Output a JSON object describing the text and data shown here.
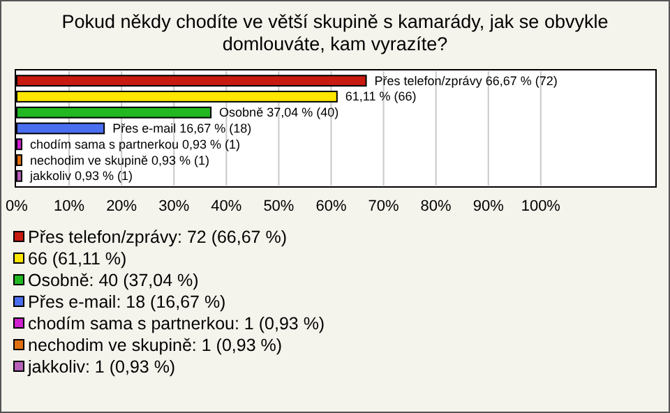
{
  "chart_data": {
    "type": "bar",
    "orientation": "horizontal",
    "title": "Pokud někdy chodíte ve větší skupině s kamarády, jak se obvykle\ndomlouváte, kam vyrazíte?",
    "categories": [
      null,
      null,
      null,
      null,
      null,
      null,
      null
    ],
    "values": [
      66.67,
      61.11,
      37.04,
      16.67,
      0.93,
      0.93,
      0.93
    ],
    "colors": [
      "#c81a10",
      "#ffe600",
      "#22b822",
      "#4a6ef0",
      "#d020d0",
      "#e07010",
      "#b860b8"
    ],
    "value_labels": [
      "Přes telefon/zprávy 66,67 % (72)",
      "61,11 % (66)",
      "Osobně 37,04 % (40)",
      "Přes e-mail 16,67 % (18)",
      "chodím sama s partnerkou 0,93 % (1)",
      "nechodim ve skupině 0,93 % (1)",
      "jakkoliv 0,93 % (1)"
    ],
    "annotations": [
      "Přes telefon/zprávy: 72 (66,67 %)",
      "66 (61,11 %)",
      "Osobně: 40 (37,04 %)",
      "Přes e-mail: 18 (16,67 %)",
      "chodím sama s partnerkou: 1 (0,93 %)",
      "nechodim ve skupině: 1 (0,93 %)",
      "jakkoliv: 1 (0,93 %)"
    ],
    "xlim": [
      0,
      122
    ],
    "xticks": [
      {
        "value": 0,
        "label": "0%"
      },
      {
        "value": 10,
        "label": "10%"
      },
      {
        "value": 20,
        "label": "20%"
      },
      {
        "value": 30,
        "label": "30%"
      },
      {
        "value": 40,
        "label": "40%"
      },
      {
        "value": 50,
        "label": "50%"
      },
      {
        "value": 60,
        "label": "60%"
      },
      {
        "value": 70,
        "label": "70%"
      },
      {
        "value": 80,
        "label": "80%"
      },
      {
        "value": 90,
        "label": "90%"
      },
      {
        "value": 100,
        "label": "100%"
      }
    ],
    "grid": "x"
  }
}
